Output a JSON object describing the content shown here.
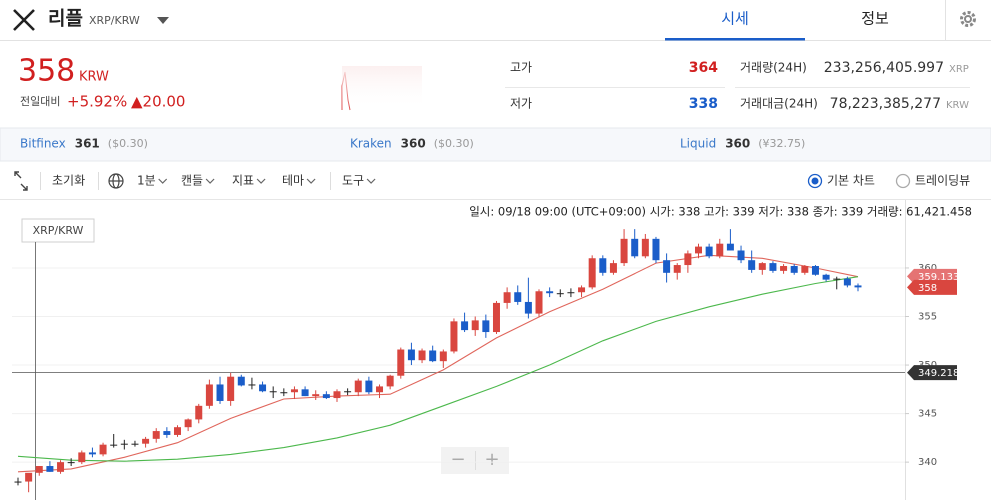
{
  "header": {
    "coin": "리플",
    "pair": "XRP/KRW",
    "tabs": [
      "시세",
      "정보"
    ],
    "active_tab": 0
  },
  "price": {
    "value": "358",
    "unit": "KRW",
    "change_label": "전일대비",
    "change_pct": "+5.92%",
    "change_abs": "▲20.00"
  },
  "stats": {
    "high_label": "고가",
    "high": 364,
    "low_label": "저가",
    "low": 338,
    "volume_label": "거래량(24H)",
    "volume": "233,256,405.997",
    "volume_unit": "XRP",
    "amount_label": "거래대금(24H)",
    "amount": "78,223,385,277",
    "amount_unit": "KRW"
  },
  "exchanges": [
    {
      "name": "Bitfinex",
      "price": 361,
      "quote": "($0.30)"
    },
    {
      "name": "Kraken",
      "price": 360,
      "quote": "($0.30)"
    },
    {
      "name": "Liquid",
      "price": 360,
      "quote": "(¥32.75)"
    }
  ],
  "toolbar": {
    "reset": "초기화",
    "menus": [
      "1분",
      "캔들",
      "지표",
      "테마",
      "도구"
    ],
    "chart_modes": [
      "기본 차트",
      "트레이딩뷰"
    ],
    "selected_mode": 0
  },
  "chart_data": {
    "type": "candlestick",
    "info": "일시: 09/18 09:00 (UTC+09:00) 시가: 338 고가: 339 저가: 338 종가: 339 거래량: 61,421.458",
    "legend": "XRP/KRW",
    "up_color": "#d9463f",
    "down_color": "#1a5dc9",
    "ylim": [
      336.1,
      367.0
    ],
    "yticks": [
      340,
      345,
      350,
      355,
      360
    ],
    "candles": [
      [
        338.0,
        338.4,
        337.6,
        338.0
      ],
      [
        338.0,
        338.6,
        336.9,
        338.9
      ],
      [
        338.9,
        339.6,
        338.6,
        339.6
      ],
      [
        339.6,
        340.1,
        339.0,
        339.0
      ],
      [
        339.0,
        340.2,
        338.8,
        340.0
      ],
      [
        340.0,
        340.4,
        339.6,
        340.0
      ],
      [
        340.0,
        341.2,
        339.8,
        341.0
      ],
      [
        341.0,
        341.5,
        340.5,
        340.8
      ],
      [
        340.8,
        342.0,
        340.6,
        341.8
      ],
      [
        341.8,
        342.9,
        341.5,
        341.8
      ],
      [
        341.8,
        342.3,
        341.3,
        341.9
      ],
      [
        341.9,
        342.2,
        341.6,
        341.9
      ],
      [
        341.9,
        342.6,
        341.5,
        342.4
      ],
      [
        342.4,
        343.5,
        342.0,
        343.2
      ],
      [
        343.2,
        343.6,
        342.5,
        342.8
      ],
      [
        342.8,
        343.8,
        342.6,
        343.6
      ],
      [
        343.6,
        344.5,
        343.2,
        344.4
      ],
      [
        344.4,
        346.0,
        344.0,
        345.8
      ],
      [
        345.8,
        348.5,
        345.5,
        348.0
      ],
      [
        348.0,
        348.8,
        346.0,
        346.3
      ],
      [
        346.3,
        349.2,
        345.8,
        348.8
      ],
      [
        348.8,
        349.0,
        347.8,
        347.9
      ],
      [
        347.9,
        348.7,
        347.5,
        348.0
      ],
      [
        348.0,
        348.3,
        347.2,
        347.3
      ],
      [
        347.3,
        347.8,
        346.6,
        347.2
      ],
      [
        347.2,
        347.6,
        346.8,
        347.2
      ],
      [
        347.2,
        347.8,
        346.5,
        347.5
      ],
      [
        347.5,
        347.8,
        346.8,
        346.8
      ],
      [
        346.8,
        347.4,
        346.4,
        347.0
      ],
      [
        347.0,
        347.3,
        346.5,
        346.6
      ],
      [
        346.6,
        347.5,
        346.2,
        347.3
      ],
      [
        347.3,
        347.6,
        346.9,
        347.2
      ],
      [
        347.2,
        348.6,
        346.8,
        348.4
      ],
      [
        348.4,
        348.8,
        347.0,
        347.2
      ],
      [
        347.2,
        348.0,
        346.6,
        347.8
      ],
      [
        347.8,
        349.0,
        347.5,
        348.9
      ],
      [
        348.9,
        351.8,
        348.6,
        351.6
      ],
      [
        351.6,
        352.3,
        350.0,
        350.5
      ],
      [
        350.5,
        351.7,
        350.2,
        351.5
      ],
      [
        351.5,
        352.0,
        350.3,
        350.4
      ],
      [
        350.4,
        351.6,
        349.7,
        351.4
      ],
      [
        351.4,
        354.8,
        351.2,
        354.5
      ],
      [
        354.5,
        355.4,
        353.4,
        353.6
      ],
      [
        353.6,
        355.0,
        353.0,
        354.6
      ],
      [
        354.6,
        355.2,
        352.8,
        353.4
      ],
      [
        353.4,
        356.6,
        353.2,
        356.4
      ],
      [
        356.4,
        358.0,
        355.8,
        357.5
      ],
      [
        357.5,
        358.2,
        356.2,
        356.5
      ],
      [
        356.5,
        359.0,
        354.8,
        355.3
      ],
      [
        355.3,
        357.8,
        355.0,
        357.6
      ],
      [
        357.6,
        358.0,
        357.0,
        357.4
      ],
      [
        357.4,
        357.8,
        357.0,
        357.4
      ],
      [
        357.4,
        357.9,
        357.0,
        357.5
      ],
      [
        357.5,
        358.2,
        357.0,
        358.0
      ],
      [
        358.0,
        361.3,
        357.8,
        361.0
      ],
      [
        361.0,
        361.3,
        359.2,
        359.5
      ],
      [
        359.5,
        360.8,
        359.3,
        360.5
      ],
      [
        360.5,
        364.0,
        360.2,
        363.0
      ],
      [
        363.0,
        364.0,
        361.0,
        361.2
      ],
      [
        361.2,
        363.5,
        361.0,
        363.0
      ],
      [
        363.0,
        363.2,
        360.5,
        360.8
      ],
      [
        360.8,
        361.5,
        358.5,
        359.5
      ],
      [
        359.5,
        360.5,
        358.8,
        360.3
      ],
      [
        360.3,
        361.8,
        359.5,
        361.5
      ],
      [
        361.5,
        362.5,
        361.0,
        362.2
      ],
      [
        362.2,
        362.5,
        361.0,
        361.2
      ],
      [
        361.2,
        363.0,
        361.0,
        362.5
      ],
      [
        362.5,
        364.0,
        361.8,
        361.8
      ],
      [
        361.8,
        362.3,
        360.5,
        360.8
      ],
      [
        360.8,
        361.8,
        359.5,
        359.8
      ],
      [
        359.8,
        360.6,
        359.3,
        360.5
      ],
      [
        360.5,
        360.7,
        359.5,
        359.7
      ],
      [
        359.7,
        360.4,
        359.4,
        360.2
      ],
      [
        360.2,
        360.4,
        359.3,
        359.5
      ],
      [
        359.5,
        360.3,
        359.3,
        360.2
      ],
      [
        360.2,
        360.3,
        359.2,
        359.3
      ],
      [
        359.3,
        359.4,
        358.6,
        358.8
      ],
      [
        358.8,
        359.1,
        357.8,
        358.9
      ],
      [
        358.9,
        359.1,
        358.0,
        358.2
      ],
      [
        358.2,
        358.4,
        357.6,
        358.0
      ]
    ],
    "ma_lines": [
      {
        "color": "#e0665c",
        "x": [
          0,
          5,
          10,
          15,
          20,
          25,
          30,
          35,
          40,
          45,
          50,
          55,
          60,
          65,
          70,
          75,
          79
        ],
        "values": [
          339.0,
          339.3,
          340.5,
          342.0,
          344.5,
          346.5,
          346.8,
          347.0,
          349.5,
          352.8,
          355.5,
          357.8,
          360.5,
          361.3,
          361.0,
          360.0,
          359.1
        ]
      },
      {
        "color": "#4cb84c",
        "x": [
          0,
          5,
          10,
          15,
          20,
          25,
          30,
          35,
          40,
          45,
          50,
          55,
          60,
          65,
          70,
          75,
          79
        ],
        "values": [
          340.6,
          340.2,
          340.1,
          340.3,
          340.8,
          341.5,
          342.5,
          343.8,
          345.8,
          347.8,
          350.0,
          352.5,
          354.5,
          356.0,
          357.3,
          358.4,
          359.1
        ]
      }
    ],
    "price_labels": [
      {
        "value": 359.133,
        "color": "#e57373"
      },
      {
        "value": 358,
        "color": "#d9463f"
      },
      {
        "value": 349.218,
        "color": "#333333"
      }
    ],
    "crosshair": 349.218,
    "zoom_buttons": [
      "−",
      "+"
    ]
  }
}
